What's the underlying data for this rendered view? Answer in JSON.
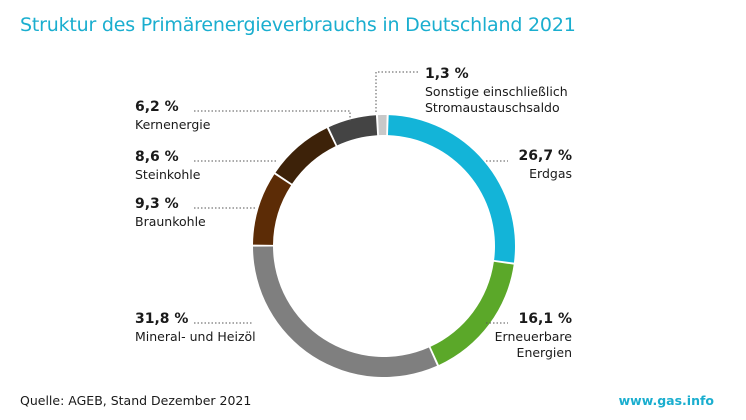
{
  "title": "Struktur des Primärenergieverbrauchs in Deutschland 2021",
  "source": "Quelle: AGEB, Stand Dezember 2021",
  "site": "www.gas.info",
  "chart_data": {
    "type": "pie",
    "donut": true,
    "title": "Struktur des Primärenergieverbrauchs in Deutschland 2021",
    "unit": "%",
    "slices": [
      {
        "value": 26.7,
        "value_label": "26,7 %",
        "label_lines": [
          "Erdgas"
        ],
        "color": "#13b4d8"
      },
      {
        "value": 16.1,
        "value_label": "16,1 %",
        "label_lines": [
          "Erneuerbare",
          "Energien"
        ],
        "color": "#5ba829"
      },
      {
        "value": 31.8,
        "value_label": "31,8 %",
        "label_lines": [
          "Mineral- und Heizöl"
        ],
        "color": "#7f7f7f"
      },
      {
        "value": 9.3,
        "value_label": "9,3 %",
        "label_lines": [
          "Braunkohle"
        ],
        "color": "#5c2c06"
      },
      {
        "value": 8.6,
        "value_label": "8,6 %",
        "label_lines": [
          "Steinkohle"
        ],
        "color": "#3d2209"
      },
      {
        "value": 6.2,
        "value_label": "6,2 %",
        "label_lines": [
          "Kernenergie"
        ],
        "color": "#444444"
      },
      {
        "value": 1.3,
        "value_label": "1,3 %",
        "label_lines": [
          "Sonstige einschließlich",
          "Stromaustauschsaldo"
        ],
        "color": "#c8c8c8"
      }
    ]
  }
}
